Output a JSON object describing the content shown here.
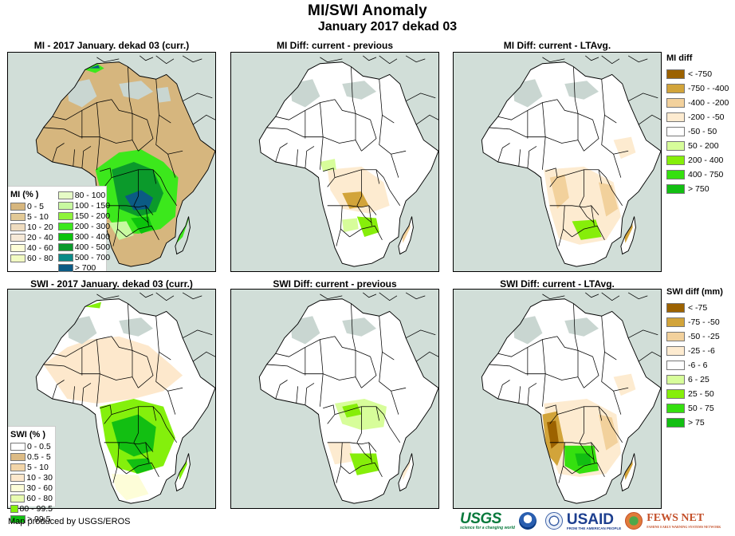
{
  "header": {
    "title": "MI/SWI Anomaly",
    "subtitle": "January 2017 dekad 03"
  },
  "panels": {
    "mi_current": {
      "title": "MI - 2017 January. dekad 03 (curr.)"
    },
    "mi_diff_prev": {
      "title": "MI Diff: current - previous"
    },
    "mi_diff_lta": {
      "title": "MI Diff: current - LTAvg."
    },
    "swi_current": {
      "title": "SWI - 2017 January. dekad 03 (curr.)"
    },
    "swi_diff_prev": {
      "title": "SWI Diff: current - previous"
    },
    "swi_diff_lta": {
      "title": "SWI Diff: current - LTAvg."
    }
  },
  "legends": {
    "mi": {
      "title": "MI (% )",
      "items": [
        {
          "label": "0 - 5",
          "color": "#d6b67e"
        },
        {
          "label": "5 - 10",
          "color": "#e2c996"
        },
        {
          "label": "10 - 20",
          "color": "#efdcbf"
        },
        {
          "label": "20 - 40",
          "color": "#f6e9d7"
        },
        {
          "label": "40 - 60",
          "color": "#fdfdd6"
        },
        {
          "label": "60 - 80",
          "color": "#f2fbc2"
        },
        {
          "label": "80 - 100",
          "color": "#e6fbc6"
        },
        {
          "label": "100 - 150",
          "color": "#c8f9a0"
        },
        {
          "label": "150 - 200",
          "color": "#8ef43a"
        },
        {
          "label": "200 - 300",
          "color": "#3ce81c"
        },
        {
          "label": "300 - 400",
          "color": "#0cc30c"
        },
        {
          "label": "400 - 500",
          "color": "#0b9a2b"
        },
        {
          "label": "500 - 700",
          "color": "#0a8a87"
        },
        {
          "label": "> 700",
          "color": "#0b5b84"
        }
      ]
    },
    "swi": {
      "title": "SWI (% )",
      "items": [
        {
          "label": "0 - 0.5",
          "color": "#ffffff"
        },
        {
          "label": "0.5 - 5",
          "color": "#dcbb85"
        },
        {
          "label": "5 - 10",
          "color": "#f2d5a8"
        },
        {
          "label": "10 - 30",
          "color": "#fde8cc"
        },
        {
          "label": "30 - 60",
          "color": "#fdfdd8"
        },
        {
          "label": "60 - 80",
          "color": "#e8fcb0"
        },
        {
          "label": "80 - 99.5",
          "color": "#84f00c"
        },
        {
          "label": "> 99.5",
          "color": "#12bf12"
        }
      ]
    },
    "mi_diff": {
      "title": "MI diff",
      "items": [
        {
          "label": "< -750",
          "color": "#9c6200"
        },
        {
          "label": "-750 - -400",
          "color": "#d2a43a"
        },
        {
          "label": "-400 - -200",
          "color": "#f2d19c"
        },
        {
          "label": "-200 - -50",
          "color": "#fdebd0"
        },
        {
          "label": "-50 - 50",
          "color": "#ffffff"
        },
        {
          "label": "50 - 200",
          "color": "#d7fd9a"
        },
        {
          "label": "200 - 400",
          "color": "#86ee0a"
        },
        {
          "label": "400 - 750",
          "color": "#35e00f"
        },
        {
          "label": "> 750",
          "color": "#12bf12"
        }
      ]
    },
    "swi_diff": {
      "title": "SWI diff (mm)",
      "items": [
        {
          "label": "< -75",
          "color": "#9c6200"
        },
        {
          "label": "-75 - -50",
          "color": "#d2a43a"
        },
        {
          "label": "-50 - -25",
          "color": "#f2d19c"
        },
        {
          "label": "-25 - -6",
          "color": "#fdebd0"
        },
        {
          "label": "-6 - 6",
          "color": "#ffffff"
        },
        {
          "label": "6 - 25",
          "color": "#d7fd9a"
        },
        {
          "label": "25 - 50",
          "color": "#86ee0a"
        },
        {
          "label": "50 - 75",
          "color": "#35e00f"
        },
        {
          "label": "> 75",
          "color": "#12bf12"
        }
      ]
    }
  },
  "footer": {
    "credit": "Map produced by USGS/EROS",
    "logos": {
      "usgs": "USGS",
      "usgs_tagline": "science for a changing world",
      "usaid": "USAID",
      "usaid_tagline": "FROM THE AMERICAN PEOPLE",
      "fewsnet": "FEWS NET",
      "fewsnet_tagline": "FAMINE EARLY WARNING SYSTEMS NETWORK"
    }
  },
  "colors": {
    "ocean": "#d1ded8",
    "sahara_nodata": "#c9d6d1",
    "land_white": "#ffffff"
  }
}
